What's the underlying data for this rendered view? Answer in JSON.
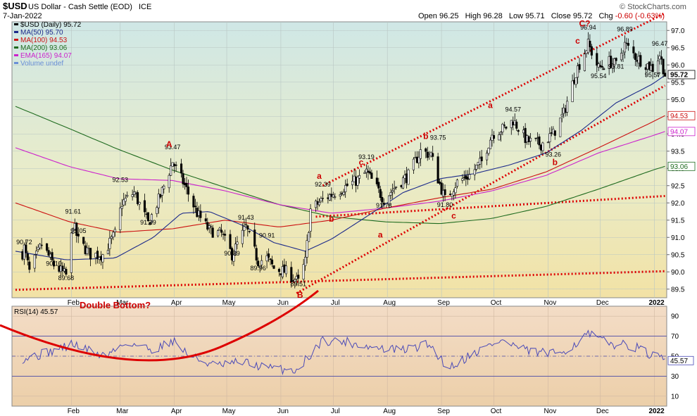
{
  "chart_data": {
    "type": "candlestick",
    "header": {
      "symbol": "$USD",
      "name": "US Dollar - Cash Settle (EOD)",
      "exchange": "ICE",
      "date": "7-Jan-2022",
      "brand": "© StockCharts.com",
      "ohlc_line": {
        "open_label": "Open",
        "open": "96.25",
        "high_label": "High",
        "high": "96.28",
        "low_label": "Low",
        "low": "95.71",
        "close_label": "Close",
        "close": "95.72",
        "chg_label": "Chg",
        "chg": "-0.60 (-0.63%)"
      }
    },
    "x_labels": [
      "Feb",
      "Mar",
      "Apr",
      "May",
      "Jun",
      "Jul",
      "Aug",
      "Sep",
      "Oct",
      "Nov",
      "Dec",
      "2022"
    ],
    "price_axis": {
      "ylim": [
        89.25,
        97.25
      ],
      "ticks": [
        89.5,
        90.0,
        90.5,
        91.0,
        91.5,
        92.0,
        92.5,
        93.0,
        93.5,
        94.0,
        94.5,
        95.0,
        95.5,
        96.0,
        96.5,
        97.0
      ],
      "tick_labels": [
        "89.5",
        "90.0",
        "90.5",
        "91.0",
        "91.5",
        "92.0",
        "92.5",
        "93.0",
        "93.5",
        "94.0",
        "94.5",
        "95.0",
        "95.5",
        "96.0",
        "96.5",
        "97.0"
      ]
    },
    "legend": [
      {
        "text": "$USD (Daily) 95.72",
        "color": "#000000"
      },
      {
        "text": "MA(50) 95.70",
        "color": "#1c2a8a"
      },
      {
        "text": "MA(100) 94.53",
        "color": "#cc1111"
      },
      {
        "text": "MA(200) 93.06",
        "color": "#1f6b1f"
      },
      {
        "text": "EMA(165) 94.07",
        "color": "#cc22cc"
      },
      {
        "text": "Volume undef",
        "color": "#6a8fd6"
      }
    ],
    "right_tags": [
      {
        "value": 95.72,
        "text": "95.72",
        "color": "#000000",
        "bold": true
      },
      {
        "value": 94.53,
        "text": "94.53",
        "color": "#cc1111"
      },
      {
        "value": 94.07,
        "text": "94.07",
        "color": "#cc22cc"
      },
      {
        "value": 93.06,
        "text": "93.06",
        "color": "#1f6b1f"
      }
    ],
    "price_labels": [
      {
        "date": "2021-01-05",
        "value": 90.72,
        "text": "90.72"
      },
      {
        "date": "2021-01-22",
        "value": 90.1,
        "text": "90.10"
      },
      {
        "date": "2021-01-29",
        "value": 89.68,
        "text": "89.68"
      },
      {
        "date": "2021-02-02",
        "value": 91.61,
        "text": "91.61"
      },
      {
        "date": "2021-02-05",
        "value": 91.05,
        "text": "91.05"
      },
      {
        "date": "2021-03-01",
        "value": 92.53,
        "text": "92.53"
      },
      {
        "date": "2021-03-17",
        "value": 91.29,
        "text": "91.29"
      },
      {
        "date": "2021-03-31",
        "value": 93.47,
        "text": "93.47"
      },
      {
        "date": "2021-05-12",
        "value": 91.43,
        "text": "91.43"
      },
      {
        "date": "2021-05-04",
        "value": 90.39,
        "text": "90.39"
      },
      {
        "date": "2021-05-24",
        "value": 90.91,
        "text": "90.91"
      },
      {
        "date": "2021-05-19",
        "value": 89.96,
        "text": "89.96"
      },
      {
        "date": "2021-06-11",
        "value": 89.51,
        "text": "89.51"
      },
      {
        "date": "2021-06-25",
        "value": 92.39,
        "text": "92.39"
      },
      {
        "date": "2021-07-20",
        "value": 93.19,
        "text": "93.19"
      },
      {
        "date": "2021-07-30",
        "value": 91.78,
        "text": "91.78"
      },
      {
        "date": "2021-09-03",
        "value": 91.8,
        "text": "91.80"
      },
      {
        "date": "2021-08-30",
        "value": 93.75,
        "text": "93.75"
      },
      {
        "date": "2021-10-12",
        "value": 94.57,
        "text": "94.57"
      },
      {
        "date": "2021-11-04",
        "value": 93.26,
        "text": "93.26"
      },
      {
        "date": "2021-11-24",
        "value": 96.94,
        "text": "96.94"
      },
      {
        "date": "2021-11-30",
        "value": 95.54,
        "text": "95.54"
      },
      {
        "date": "2021-12-15",
        "value": 96.89,
        "text": "96.89"
      },
      {
        "date": "2021-12-10",
        "value": 95.81,
        "text": "95.81"
      },
      {
        "date": "2021-12-31",
        "value": 95.57,
        "text": "95.57"
      },
      {
        "date": "2022-01-04",
        "value": 96.47,
        "text": "96.47"
      }
    ],
    "wave_labels": [
      {
        "date": "2021-03-29",
        "value": 93.62,
        "text": "A"
      },
      {
        "date": "2021-06-12",
        "value": 89.25,
        "text": "B"
      },
      {
        "date": "2021-06-23",
        "value": 92.7,
        "text": "a"
      },
      {
        "date": "2021-06-30",
        "value": 91.45,
        "text": "b"
      },
      {
        "date": "2021-07-17",
        "value": 93.1,
        "text": "c"
      },
      {
        "date": "2021-07-28",
        "value": 91.0,
        "text": "a"
      },
      {
        "date": "2021-08-23",
        "value": 93.85,
        "text": "b"
      },
      {
        "date": "2021-09-08",
        "value": 91.55,
        "text": "c"
      },
      {
        "date": "2021-09-29",
        "value": 94.75,
        "text": "a"
      },
      {
        "date": "2021-11-05",
        "value": 93.1,
        "text": "b"
      },
      {
        "date": "2021-11-18",
        "value": 96.62,
        "text": "c"
      },
      {
        "date": "2021-11-22",
        "value": 97.12,
        "text": "C?"
      }
    ],
    "annotation_text": "Double Bottom?",
    "rsi": {
      "title": "RSI(14) 45.57",
      "last_value": 45.57,
      "last_label": "45.57",
      "ylim": [
        0,
        100
      ],
      "ticks": [
        10,
        30,
        50,
        70,
        90
      ],
      "tick_labels": [
        "10",
        "30",
        "50",
        "70",
        "90"
      ],
      "levels": [
        30,
        70
      ]
    },
    "price_knots": {
      "dates": [
        "2020-12-31",
        "2021-01-05",
        "2021-01-08",
        "2021-01-15",
        "2021-01-22",
        "2021-01-29",
        "2021-02-02",
        "2021-02-05",
        "2021-02-12",
        "2021-02-19",
        "2021-02-26",
        "2021-03-02",
        "2021-03-09",
        "2021-03-17",
        "2021-03-24",
        "2021-03-31",
        "2021-04-07",
        "2021-04-14",
        "2021-04-21",
        "2021-04-28",
        "2021-05-04",
        "2021-05-07",
        "2021-05-12",
        "2021-05-19",
        "2021-05-24",
        "2021-05-28",
        "2021-06-04",
        "2021-06-11",
        "2021-06-15",
        "2021-06-18",
        "2021-06-25",
        "2021-07-02",
        "2021-07-09",
        "2021-07-16",
        "2021-07-20",
        "2021-07-30",
        "2021-08-06",
        "2021-08-13",
        "2021-08-20",
        "2021-08-26",
        "2021-08-30",
        "2021-09-03",
        "2021-09-10",
        "2021-09-17",
        "2021-09-24",
        "2021-09-30",
        "2021-10-08",
        "2021-10-12",
        "2021-10-20",
        "2021-10-28",
        "2021-11-04",
        "2021-11-10",
        "2021-11-17",
        "2021-11-24",
        "2021-11-30",
        "2021-12-06",
        "2021-12-10",
        "2021-12-15",
        "2021-12-22",
        "2021-12-31",
        "2022-01-04",
        "2022-01-07"
      ],
      "values": [
        89.9,
        90.7,
        90.0,
        90.8,
        90.2,
        89.9,
        91.4,
        90.9,
        90.5,
        90.5,
        91.1,
        92.0,
        92.3,
        91.4,
        92.2,
        93.2,
        92.5,
        91.7,
        91.2,
        91.1,
        90.5,
        90.8,
        91.3,
        90.3,
        90.4,
        90.1,
        90.0,
        89.7,
        90.3,
        91.8,
        92.1,
        92.3,
        92.5,
        92.7,
        92.9,
        92.1,
        92.5,
        92.8,
        93.5,
        93.4,
        92.7,
        92.1,
        92.6,
        92.8,
        93.2,
        94.0,
        94.2,
        94.4,
        93.8,
        93.7,
        94.0,
        94.6,
        95.8,
        96.6,
        95.9,
        96.1,
        96.0,
        96.6,
        96.2,
        95.9,
        96.3,
        95.72
      ]
    },
    "ma50_knots": {
      "dates": [
        "2020-12-31",
        "2021-01-29",
        "2021-02-26",
        "2021-03-20",
        "2021-04-05",
        "2021-04-21",
        "2021-05-10",
        "2021-05-28",
        "2021-06-15",
        "2021-06-30",
        "2021-07-20",
        "2021-08-10",
        "2021-08-31",
        "2021-09-20",
        "2021-10-10",
        "2021-10-31",
        "2021-11-20",
        "2021-12-10",
        "2021-12-31",
        "2022-01-07"
      ],
      "values": [
        90.6,
        90.35,
        90.4,
        91.0,
        91.7,
        91.75,
        91.35,
        90.85,
        90.6,
        90.95,
        91.6,
        92.3,
        92.7,
        92.85,
        93.1,
        93.45,
        94.1,
        94.9,
        95.45,
        95.7
      ]
    },
    "ma100_knots": {
      "dates": [
        "2020-12-31",
        "2021-01-31",
        "2021-02-28",
        "2021-03-31",
        "2021-04-30",
        "2021-05-31",
        "2021-06-30",
        "2021-07-31",
        "2021-08-31",
        "2021-09-30",
        "2021-10-31",
        "2021-11-30",
        "2021-12-31",
        "2022-01-07"
      ],
      "values": [
        92.0,
        91.45,
        91.15,
        91.25,
        91.5,
        91.3,
        91.5,
        91.85,
        92.15,
        92.4,
        92.9,
        93.6,
        94.35,
        94.53
      ]
    },
    "ma200_knots": {
      "dates": [
        "2020-12-31",
        "2021-01-31",
        "2021-02-28",
        "2021-03-31",
        "2021-04-30",
        "2021-05-31",
        "2021-06-30",
        "2021-07-31",
        "2021-08-31",
        "2021-09-30",
        "2021-10-31",
        "2021-11-30",
        "2021-12-31",
        "2022-01-07"
      ],
      "values": [
        94.8,
        94.15,
        93.55,
        92.95,
        92.45,
        91.95,
        91.6,
        91.45,
        91.4,
        91.55,
        91.9,
        92.4,
        92.95,
        93.06
      ]
    },
    "ema165_knots": {
      "dates": [
        "2020-12-31",
        "2021-01-31",
        "2021-02-28",
        "2021-03-31",
        "2021-04-30",
        "2021-05-31",
        "2021-06-30",
        "2021-07-31",
        "2021-08-31",
        "2021-09-30",
        "2021-10-31",
        "2021-11-30",
        "2021-12-31",
        "2022-01-07"
      ],
      "values": [
        93.6,
        93.05,
        92.7,
        92.65,
        92.35,
        91.95,
        91.7,
        91.85,
        92.05,
        92.35,
        92.8,
        93.45,
        93.95,
        94.07
      ]
    },
    "rsi_knots": {
      "dates": [
        "2020-12-31",
        "2021-01-15",
        "2021-02-02",
        "2021-02-20",
        "2021-03-05",
        "2021-03-20",
        "2021-03-31",
        "2021-04-10",
        "2021-04-25",
        "2021-05-10",
        "2021-05-25",
        "2021-06-10",
        "2021-06-25",
        "2021-07-10",
        "2021-07-25",
        "2021-08-10",
        "2021-08-25",
        "2021-09-05",
        "2021-09-20",
        "2021-10-05",
        "2021-10-20",
        "2021-11-05",
        "2021-11-15",
        "2021-11-24",
        "2021-12-05",
        "2021-12-20",
        "2021-12-31",
        "2022-01-07"
      ],
      "values": [
        46,
        52,
        62,
        50,
        64,
        56,
        66,
        50,
        40,
        44,
        38,
        36,
        66,
        64,
        58,
        56,
        62,
        38,
        54,
        66,
        55,
        52,
        60,
        72,
        63,
        60,
        50,
        45.57
      ]
    },
    "channels": [
      {
        "style": "dotted",
        "points": [
          [
            "2020-12-31",
            89.48
          ],
          [
            "2022-01-07",
            90.02
          ]
        ]
      },
      {
        "style": "dotted",
        "points": [
          [
            "2021-06-21",
            91.6
          ],
          [
            "2022-01-07",
            92.2
          ]
        ]
      },
      {
        "style": "dotted",
        "points": [
          [
            "2021-06-10",
            89.38
          ],
          [
            "2022-01-07",
            95.4
          ]
        ]
      },
      {
        "style": "dotted",
        "points": [
          [
            "2021-06-25",
            92.5
          ],
          [
            "2022-01-07",
            97.5
          ]
        ]
      }
    ]
  }
}
